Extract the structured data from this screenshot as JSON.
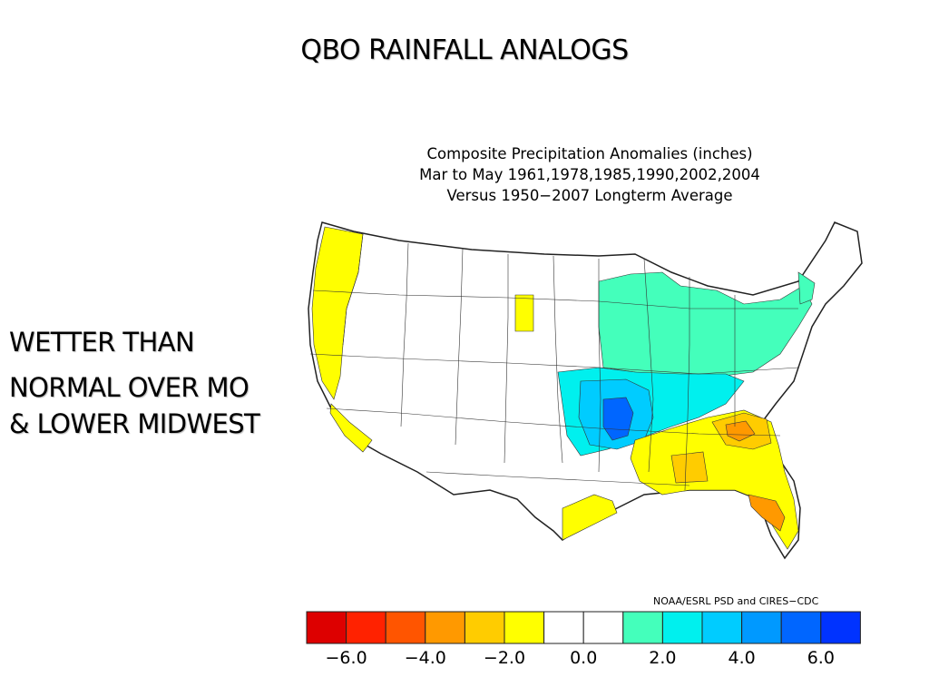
{
  "slide": {
    "title": "QBO RAINFALL ANALOGS",
    "body_lines": [
      "WETTER  THAN",
      "NORMAL OVER  MO",
      "& LOWER MIDWEST"
    ]
  },
  "map": {
    "header_lines": [
      "Composite  Precipitation  Anomalies  (inches)",
      "Mar to May   1961,1978,1985,1990,2002,2004",
      "Versus  1950−2007  Longterm  Average"
    ],
    "credit": "NOAA/ESRL PSD and CIRES−CDC",
    "colorbar": {
      "colors": [
        "#dd0000",
        "#ff2200",
        "#ff5500",
        "#ff9900",
        "#ffcc00",
        "#ffff00",
        "#ffffff",
        "#ffffff",
        "#44ffbb",
        "#00f0ee",
        "#00ccff",
        "#0099ff",
        "#0066ff",
        "#0033ff"
      ],
      "tick_labels": [
        "−6.0",
        "−4.0",
        "−2.0",
        "0.0",
        "2.0",
        "4.0",
        "6.0"
      ]
    }
  }
}
